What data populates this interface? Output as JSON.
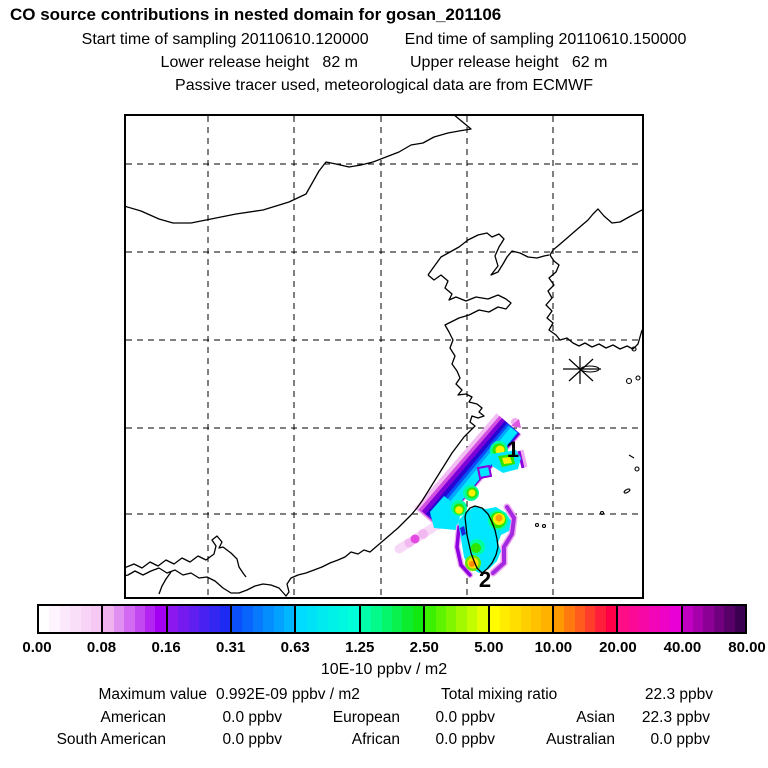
{
  "header": {
    "title": "CO  source contributions in nested domain for gosan_201106",
    "start_time": "Start time of sampling 20110610.120000",
    "end_time": "End time of sampling 20110610.150000",
    "lower_release": "Lower release height   82 m",
    "upper_release": "Upper release height   62 m",
    "tracer_line": "Passive tracer used, meteorological data are from ECMWF"
  },
  "map": {
    "station": "gosan",
    "plume_labels": [
      {
        "label": "1"
      },
      {
        "label": "2"
      }
    ]
  },
  "colorbar": {
    "unit_label": "10E-10 ppbv / m2",
    "tick_labels": [
      "0.00",
      "0.08",
      "0.16",
      "0.31",
      "0.63",
      "1.25",
      "2.50",
      "5.00",
      "10.00",
      "20.00",
      "40.00",
      "80.00"
    ],
    "segments": [
      {
        "from": "#ffffff",
        "to": "#f6c9f4"
      },
      {
        "from": "#f1b3f0",
        "to": "#a300f2"
      },
      {
        "from": "#8d17ef",
        "to": "#1c2af2"
      },
      {
        "from": "#0b50fa",
        "to": "#00b6ff"
      },
      {
        "from": "#00dcff",
        "to": "#00ffd8"
      },
      {
        "from": "#00ffa8",
        "to": "#10e810"
      },
      {
        "from": "#3cf000",
        "to": "#e6ff00"
      },
      {
        "from": "#fffb00",
        "to": "#ffb200"
      },
      {
        "from": "#ff9900",
        "to": "#ff0048"
      },
      {
        "from": "#ff0d86",
        "to": "#e800d6"
      },
      {
        "from": "#c100c4",
        "to": "#3c0050"
      }
    ]
  },
  "stats": {
    "max_label": "Maximum value",
    "max_value": "0.992E-09 ppbv / m2",
    "total_label": "Total mixing ratio",
    "total_value": "22.3 ppbv",
    "regions": [
      {
        "name": "American",
        "value": "0.0 ppbv"
      },
      {
        "name": "European",
        "value": "0.0 ppbv"
      },
      {
        "name": "Asian",
        "value": "22.3 ppbv"
      },
      {
        "name": "South American",
        "value": "0.0 ppbv"
      },
      {
        "name": "African",
        "value": "0.0 ppbv"
      },
      {
        "name": "Australian",
        "value": "0.0 ppbv"
      }
    ]
  },
  "chart_data": {
    "type": "heatmap",
    "title": "CO source contributions in nested domain for gosan_201106",
    "station": "gosan_201106",
    "start_time": "20110610.120000",
    "end_time": "20110610.150000",
    "lower_release_height_m": 82,
    "upper_release_height_m": 62,
    "tracer_note": "Passive tracer used, meteorological data are from ECMWF",
    "colorbar_levels": [
      0.0,
      0.08,
      0.16,
      0.31,
      0.63,
      1.25,
      2.5,
      5.0,
      10.0,
      20.0,
      40.0,
      80.0
    ],
    "colorbar_unit": "10E-10 ppbv / m2",
    "maximum_value": "0.992E-09 ppbv / m2",
    "total_mixing_ratio_ppbv": 22.3,
    "contributions_ppbv": {
      "American": 0.0,
      "European": 0.0,
      "Asian": 22.3,
      "South American": 0.0,
      "African": 0.0,
      "Australian": 0.0
    },
    "plumes": [
      {
        "label": "1",
        "description": "elongated high-concentration band along the Chinese coast / East China Sea, peak colors up to yellow (~5-10 units)"
      },
      {
        "label": "2",
        "description": "plume over Taiwan with yellow-orange cores (~10-20 units)"
      }
    ],
    "map_extent_note": "East Asia: China coast, Bohai Sea, Korean peninsula, Taiwan; receptor marked with asterisk near Jeju (Gosan)",
    "grid": "dashed lat/lon gridlines, 5 vertical x 5 horizontal",
    "legend_position": "horizontal colorbar below map"
  }
}
